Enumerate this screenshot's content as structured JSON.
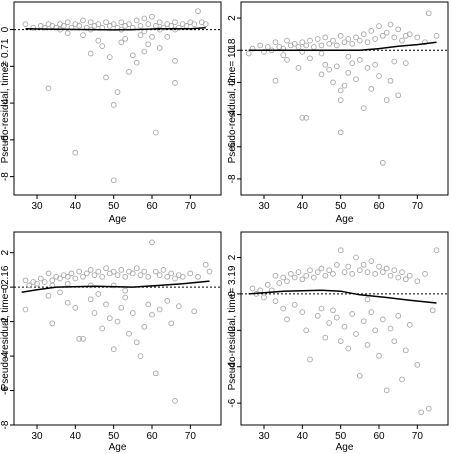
{
  "chart_data": [
    {
      "type": "scatter",
      "xlabel": "Age",
      "ylabel": "Pseudo-residual, time= 0.71",
      "xlim": [
        24,
        78
      ],
      "ylim": [
        -9,
        1.5
      ],
      "xticks": [
        30,
        40,
        50,
        60,
        70
      ],
      "yticks": [
        -8,
        -6,
        -4,
        -2,
        0
      ],
      "reference_line": 0,
      "points": [
        [
          27,
          0.3
        ],
        [
          29,
          0.1
        ],
        [
          31,
          0.2
        ],
        [
          32,
          0.1
        ],
        [
          33,
          0.3
        ],
        [
          34,
          0.2
        ],
        [
          35,
          0.1
        ],
        [
          36,
          0.3
        ],
        [
          37,
          0.2
        ],
        [
          38,
          0.4
        ],
        [
          39,
          0.1
        ],
        [
          40,
          0.3
        ],
        [
          41,
          0.2
        ],
        [
          42,
          0.5
        ],
        [
          43,
          0.1
        ],
        [
          44,
          0.4
        ],
        [
          45,
          0.2
        ],
        [
          46,
          0.3
        ],
        [
          47,
          0.1
        ],
        [
          48,
          0.4
        ],
        [
          49,
          0.2
        ],
        [
          50,
          0.3
        ],
        [
          51,
          0.1
        ],
        [
          52,
          0.4
        ],
        [
          53,
          0.2
        ],
        [
          54,
          0.3
        ],
        [
          55,
          0.1
        ],
        [
          56,
          0.5
        ],
        [
          57,
          0.2
        ],
        [
          58,
          0.6
        ],
        [
          59,
          0.3
        ],
        [
          60,
          0.7
        ],
        [
          61,
          0.2
        ],
        [
          62,
          0.4
        ],
        [
          63,
          0.1
        ],
        [
          64,
          0.3
        ],
        [
          65,
          0.2
        ],
        [
          66,
          0.4
        ],
        [
          67,
          0.1
        ],
        [
          68,
          0.3
        ],
        [
          69,
          0.2
        ],
        [
          70,
          0.4
        ],
        [
          71,
          0.3
        ],
        [
          72,
          1.0
        ],
        [
          73,
          0.4
        ],
        [
          74,
          0.3
        ],
        [
          36,
          0.0
        ],
        [
          44,
          0.0
        ],
        [
          52,
          0.0
        ],
        [
          58,
          -0.1
        ],
        [
          62,
          0.0
        ],
        [
          66,
          0.0
        ],
        [
          33,
          -3.2
        ],
        [
          40,
          -6.7
        ],
        [
          48,
          -2.6
        ],
        [
          49,
          -1.5
        ],
        [
          50,
          -8.2
        ],
        [
          50,
          -4.1
        ],
        [
          51,
          -3.4
        ],
        [
          54,
          -2.3
        ],
        [
          55,
          -1.4
        ],
        [
          56,
          -1.8
        ],
        [
          58,
          -1.2
        ],
        [
          59,
          -0.8
        ],
        [
          60,
          -0.4
        ],
        [
          61,
          -5.6
        ],
        [
          62,
          -1.0
        ],
        [
          66,
          -2.9
        ],
        [
          66,
          -1.7
        ],
        [
          44,
          -1.3
        ],
        [
          46,
          -0.6
        ],
        [
          53,
          -0.5
        ],
        [
          57,
          -0.3
        ],
        [
          64,
          -0.4
        ],
        [
          42,
          -0.3
        ],
        [
          38,
          -0.2
        ],
        [
          47,
          -0.9
        ],
        [
          52,
          -0.7
        ]
      ],
      "smooth": [
        [
          27,
          0.04
        ],
        [
          35,
          0.02
        ],
        [
          45,
          0.0
        ],
        [
          50,
          -0.02
        ],
        [
          55,
          0.0
        ],
        [
          62,
          0.05
        ],
        [
          70,
          0.05
        ],
        [
          74,
          0.1
        ]
      ]
    },
    {
      "type": "scatter",
      "xlabel": "Age",
      "ylabel": "Pseudo-residual, time= 1.18",
      "xlim": [
        24,
        78
      ],
      "ylim": [
        -9,
        3.0
      ],
      "xticks": [
        30,
        40,
        50,
        60,
        70
      ],
      "yticks": [
        -8,
        -6,
        -4,
        -2,
        0,
        2
      ],
      "reference_line": 0,
      "points": [
        [
          27,
          0.1
        ],
        [
          29,
          0.3
        ],
        [
          31,
          0.2
        ],
        [
          32,
          0.0
        ],
        [
          33,
          0.5
        ],
        [
          34,
          0.2
        ],
        [
          35,
          0.1
        ],
        [
          36,
          0.6
        ],
        [
          37,
          0.3
        ],
        [
          38,
          0.4
        ],
        [
          39,
          0.2
        ],
        [
          40,
          0.5
        ],
        [
          41,
          0.3
        ],
        [
          42,
          0.6
        ],
        [
          43,
          0.2
        ],
        [
          44,
          0.7
        ],
        [
          45,
          0.3
        ],
        [
          46,
          0.8
        ],
        [
          47,
          0.4
        ],
        [
          48,
          0.6
        ],
        [
          49,
          0.3
        ],
        [
          50,
          0.9
        ],
        [
          51,
          0.5
        ],
        [
          52,
          0.7
        ],
        [
          53,
          0.4
        ],
        [
          54,
          0.8
        ],
        [
          55,
          0.6
        ],
        [
          56,
          1.0
        ],
        [
          57,
          0.5
        ],
        [
          58,
          1.2
        ],
        [
          59,
          0.7
        ],
        [
          60,
          1.5
        ],
        [
          61,
          0.9
        ],
        [
          62,
          1.1
        ],
        [
          63,
          1.6
        ],
        [
          64,
          0.8
        ],
        [
          65,
          1.3
        ],
        [
          66,
          0.6
        ],
        [
          67,
          0.9
        ],
        [
          68,
          1.0
        ],
        [
          70,
          0.8
        ],
        [
          72,
          0.5
        ],
        [
          73,
          2.3
        ],
        [
          75,
          0.9
        ],
        [
          26,
          -0.2
        ],
        [
          30,
          -0.1
        ],
        [
          35,
          -0.3
        ],
        [
          40,
          -0.1
        ],
        [
          45,
          -0.2
        ],
        [
          33,
          -1.9
        ],
        [
          39,
          -1.1
        ],
        [
          40,
          -4.2
        ],
        [
          41,
          -4.2
        ],
        [
          45,
          -1.5
        ],
        [
          46,
          -0.9
        ],
        [
          47,
          -1.2
        ],
        [
          48,
          -2.0
        ],
        [
          49,
          -1.0
        ],
        [
          50,
          -2.5
        ],
        [
          50,
          -3.1
        ],
        [
          50,
          -5.1
        ],
        [
          51,
          -2.2
        ],
        [
          52,
          -1.4
        ],
        [
          53,
          -0.8
        ],
        [
          54,
          -1.8
        ],
        [
          55,
          -0.6
        ],
        [
          56,
          -3.6
        ],
        [
          57,
          -1.1
        ],
        [
          58,
          -2.4
        ],
        [
          59,
          -0.9
        ],
        [
          60,
          -1.6
        ],
        [
          61,
          -7.0
        ],
        [
          62,
          -3.1
        ],
        [
          63,
          -1.9
        ],
        [
          64,
          -0.7
        ],
        [
          65,
          -2.8
        ],
        [
          67,
          -0.8
        ],
        [
          52,
          -0.4
        ],
        [
          42,
          -0.5
        ],
        [
          36,
          -0.6
        ]
      ],
      "smooth": [
        [
          26,
          0.0
        ],
        [
          35,
          0.0
        ],
        [
          45,
          0.0
        ],
        [
          55,
          0.0
        ],
        [
          60,
          0.1
        ],
        [
          65,
          0.25
        ],
        [
          70,
          0.35
        ],
        [
          75,
          0.5
        ]
      ]
    },
    {
      "type": "scatter",
      "xlabel": "Age",
      "ylabel": "Pseudo-residual, time= 2.16",
      "xlim": [
        24,
        78
      ],
      "ylim": [
        -8.0,
        3.2
      ],
      "xticks": [
        30,
        40,
        50,
        60,
        70
      ],
      "yticks": [
        -8,
        -6,
        -4,
        -2,
        0,
        2
      ],
      "reference_line": 0,
      "points": [
        [
          27,
          0.4
        ],
        [
          29,
          0.3
        ],
        [
          31,
          0.5
        ],
        [
          32,
          0.3
        ],
        [
          33,
          0.8
        ],
        [
          34,
          0.4
        ],
        [
          35,
          0.6
        ],
        [
          36,
          0.5
        ],
        [
          37,
          0.7
        ],
        [
          38,
          0.6
        ],
        [
          39,
          0.8
        ],
        [
          40,
          0.5
        ],
        [
          41,
          0.9
        ],
        [
          42,
          0.6
        ],
        [
          43,
          0.8
        ],
        [
          44,
          1.0
        ],
        [
          45,
          0.7
        ],
        [
          46,
          0.9
        ],
        [
          47,
          0.6
        ],
        [
          48,
          1.1
        ],
        [
          49,
          0.8
        ],
        [
          50,
          0.9
        ],
        [
          51,
          0.7
        ],
        [
          52,
          1.0
        ],
        [
          53,
          0.6
        ],
        [
          54,
          0.9
        ],
        [
          55,
          0.8
        ],
        [
          56,
          1.1
        ],
        [
          57,
          0.7
        ],
        [
          58,
          0.9
        ],
        [
          59,
          0.6
        ],
        [
          60,
          2.6
        ],
        [
          61,
          0.9
        ],
        [
          62,
          0.7
        ],
        [
          63,
          1.0
        ],
        [
          64,
          0.6
        ],
        [
          65,
          0.8
        ],
        [
          66,
          0.5
        ],
        [
          67,
          0.7
        ],
        [
          68,
          0.6
        ],
        [
          70,
          0.8
        ],
        [
          72,
          0.6
        ],
        [
          74,
          1.3
        ],
        [
          75,
          0.9
        ],
        [
          28,
          0.1
        ],
        [
          30,
          0.2
        ],
        [
          34,
          0.1
        ],
        [
          38,
          0.2
        ],
        [
          44,
          0.1
        ],
        [
          50,
          0.1
        ],
        [
          27,
          -1.3
        ],
        [
          33,
          -0.5
        ],
        [
          34,
          -2.1
        ],
        [
          38,
          -0.9
        ],
        [
          40,
          -1.2
        ],
        [
          41,
          -3.0
        ],
        [
          42,
          -3.0
        ],
        [
          44,
          -0.7
        ],
        [
          45,
          -1.5
        ],
        [
          46,
          -0.4
        ],
        [
          47,
          -2.4
        ],
        [
          48,
          -1.0
        ],
        [
          49,
          -1.8
        ],
        [
          50,
          -3.6
        ],
        [
          51,
          -2.0
        ],
        [
          52,
          -1.2
        ],
        [
          53,
          -0.6
        ],
        [
          54,
          -2.7
        ],
        [
          55,
          -1.5
        ],
        [
          56,
          -3.2
        ],
        [
          57,
          -4.0
        ],
        [
          58,
          -2.3
        ],
        [
          59,
          -1.0
        ],
        [
          60,
          -1.6
        ],
        [
          61,
          -5.0
        ],
        [
          62,
          -1.3
        ],
        [
          64,
          -0.8
        ],
        [
          65,
          -2.1
        ],
        [
          66,
          -6.6
        ],
        [
          67,
          -1.1
        ],
        [
          71,
          -1.4
        ],
        [
          36,
          -0.3
        ],
        [
          53,
          -0.2
        ]
      ],
      "smooth": [
        [
          26,
          -0.3
        ],
        [
          30,
          -0.15
        ],
        [
          35,
          0.0
        ],
        [
          45,
          0.05
        ],
        [
          55,
          0.0
        ],
        [
          62,
          0.1
        ],
        [
          68,
          0.2
        ],
        [
          75,
          0.35
        ]
      ]
    },
    {
      "type": "scatter",
      "xlabel": "Age",
      "ylabel": "Pseudo-residual, time= 3.19",
      "xlim": [
        24,
        78
      ],
      "ylim": [
        -7.2,
        3.4
      ],
      "xticks": [
        30,
        40,
        50,
        60,
        70
      ],
      "yticks": [
        -6,
        -4,
        -2,
        0,
        2
      ],
      "reference_line": 0,
      "points": [
        [
          27,
          0.3
        ],
        [
          29,
          0.2
        ],
        [
          31,
          0.5
        ],
        [
          32,
          0.2
        ],
        [
          33,
          1.0
        ],
        [
          34,
          0.6
        ],
        [
          35,
          0.9
        ],
        [
          36,
          0.7
        ],
        [
          37,
          1.1
        ],
        [
          38,
          0.9
        ],
        [
          39,
          1.2
        ],
        [
          40,
          0.8
        ],
        [
          41,
          1.0
        ],
        [
          42,
          1.3
        ],
        [
          43,
          0.9
        ],
        [
          44,
          1.2
        ],
        [
          45,
          1.4
        ],
        [
          46,
          1.0
        ],
        [
          47,
          1.3
        ],
        [
          48,
          1.1
        ],
        [
          49,
          1.6
        ],
        [
          50,
          2.4
        ],
        [
          51,
          1.2
        ],
        [
          52,
          1.5
        ],
        [
          53,
          1.1
        ],
        [
          54,
          2.0
        ],
        [
          55,
          1.3
        ],
        [
          56,
          1.6
        ],
        [
          57,
          1.2
        ],
        [
          58,
          1.8
        ],
        [
          59,
          1.1
        ],
        [
          60,
          1.5
        ],
        [
          61,
          1.2
        ],
        [
          62,
          1.4
        ],
        [
          63,
          1.0
        ],
        [
          64,
          1.3
        ],
        [
          65,
          0.9
        ],
        [
          66,
          1.2
        ],
        [
          67,
          0.8
        ],
        [
          68,
          1.0
        ],
        [
          70,
          0.7
        ],
        [
          72,
          1.1
        ],
        [
          75,
          2.4
        ],
        [
          28,
          0.0
        ],
        [
          30,
          -0.2
        ],
        [
          33,
          -0.4
        ],
        [
          35,
          -0.8
        ],
        [
          36,
          -1.4
        ],
        [
          38,
          -0.6
        ],
        [
          40,
          -1.0
        ],
        [
          41,
          -2.0
        ],
        [
          42,
          -3.6
        ],
        [
          44,
          -1.2
        ],
        [
          45,
          -0.8
        ],
        [
          46,
          -2.4
        ],
        [
          47,
          -1.6
        ],
        [
          48,
          -0.9
        ],
        [
          49,
          -1.3
        ],
        [
          50,
          -2.6
        ],
        [
          51,
          -1.8
        ],
        [
          52,
          -3.0
        ],
        [
          53,
          -1.1
        ],
        [
          54,
          -2.2
        ],
        [
          55,
          -4.5
        ],
        [
          56,
          -1.5
        ],
        [
          57,
          -2.8
        ],
        [
          58,
          -1.0
        ],
        [
          59,
          -2.0
        ],
        [
          60,
          -3.4
        ],
        [
          61,
          -1.4
        ],
        [
          62,
          -5.3
        ],
        [
          63,
          -1.9
        ],
        [
          64,
          -2.6
        ],
        [
          65,
          -1.2
        ],
        [
          66,
          -4.7
        ],
        [
          67,
          -3.1
        ],
        [
          68,
          -1.7
        ],
        [
          70,
          -3.9
        ],
        [
          71,
          -6.5
        ],
        [
          73,
          -6.3
        ],
        [
          74,
          -0.9
        ],
        [
          57,
          -0.3
        ]
      ],
      "smooth": [
        [
          26,
          0.0
        ],
        [
          35,
          0.15
        ],
        [
          45,
          0.2
        ],
        [
          50,
          0.15
        ],
        [
          55,
          -0.05
        ],
        [
          62,
          -0.2
        ],
        [
          68,
          -0.35
        ],
        [
          75,
          -0.5
        ]
      ]
    }
  ]
}
